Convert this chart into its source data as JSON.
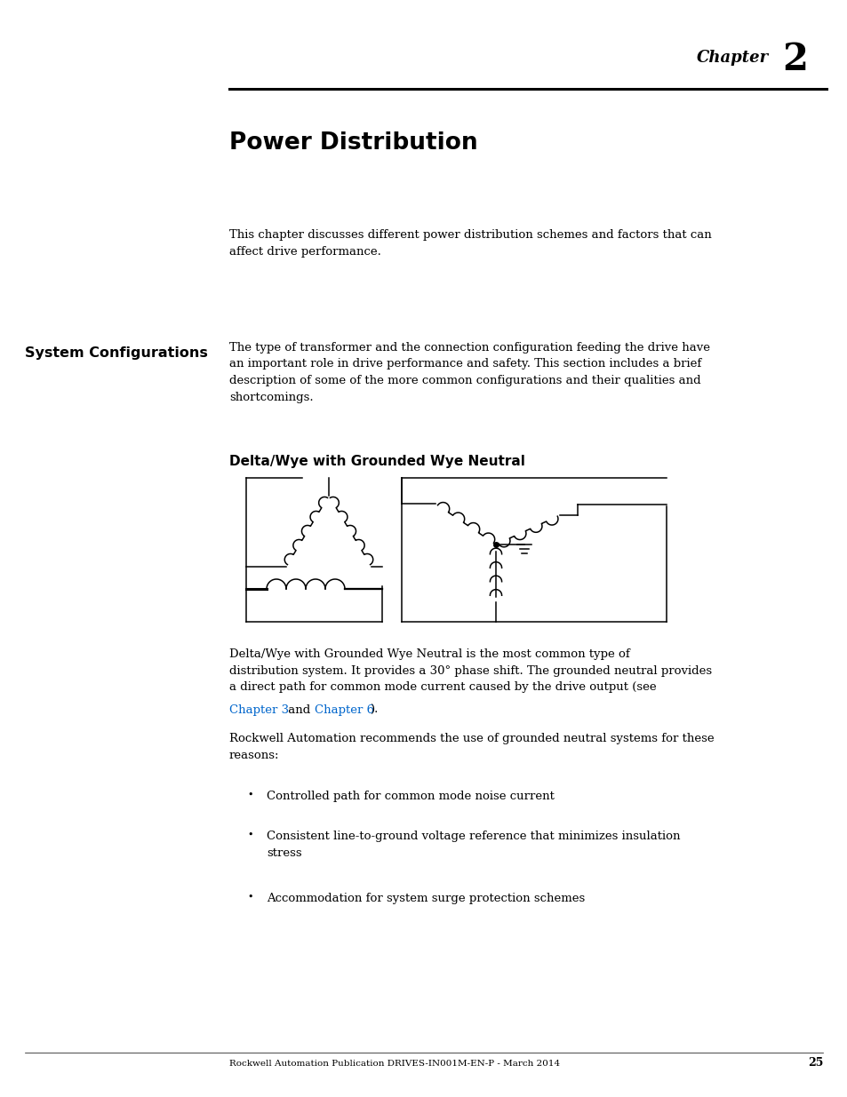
{
  "page_width": 9.54,
  "page_height": 12.35,
  "bg_color": "#ffffff",
  "chapter_text": "Chapter",
  "chapter_num": "2",
  "title": "Power Distribution",
  "intro_text": "This chapter discusses different power distribution schemes and factors that can\naffect drive performance.",
  "sidebar_title": "System Configurations",
  "body_text1": "The type of transformer and the connection configuration feeding the drive have\nan important role in drive performance and safety. This section includes a brief\ndescription of some of the more common configurations and their qualities and\nshortcomings.",
  "subsection_title": "Delta/Wye with Grounded Wye Neutral",
  "body_text2_line1": "Delta/Wye with Grounded Wye Neutral is the most common type of",
  "body_text2_line2": "distribution system. It provides a 30° phase shift. The grounded neutral provides",
  "body_text2_line3": "a direct path for common mode current caused by the drive output (see",
  "body_text2_line4_pre": "Chapter 3",
  "body_text2_line4_mid": " and ",
  "body_text2_line4_link": "Chapter 6",
  "body_text2_line4_post": ").",
  "link_color": "#0066cc",
  "body_text3": "Rockwell Automation recommends the use of grounded neutral systems for these\nreasons:",
  "bullet1": "Controlled path for common mode noise current",
  "bullet2": "Consistent line-to-ground voltage reference that minimizes insulation\nstress",
  "bullet3": "Accommodation for system surge protection schemes",
  "footer_text": "Rockwell Automation Publication DRIVES-IN001M-EN-P - March 2014",
  "footer_page": "25"
}
